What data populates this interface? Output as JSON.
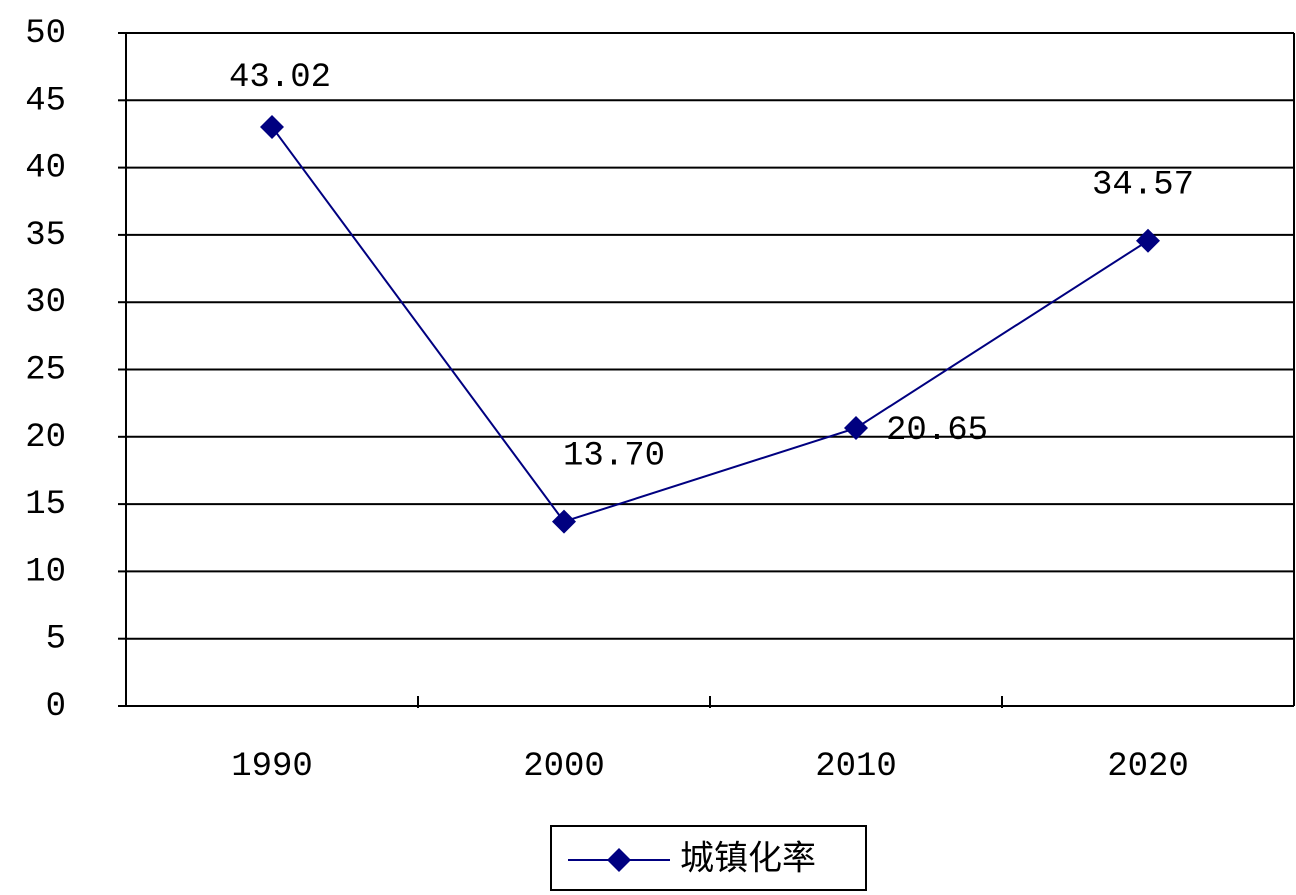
{
  "chart_data": {
    "type": "line",
    "categories": [
      "1990",
      "2000",
      "2010",
      "2020"
    ],
    "series": [
      {
        "name": "城镇化率",
        "color": "#000080",
        "values": [
          43.02,
          13.7,
          20.65,
          34.57
        ],
        "value_labels": [
          "43.02",
          "13.70",
          "20.65",
          "34.57"
        ]
      }
    ],
    "ylim": [
      0,
      50
    ],
    "yticks": [
      0,
      5,
      10,
      15,
      20,
      25,
      30,
      35,
      40,
      45,
      50
    ],
    "grid": true,
    "legend": "bottom"
  }
}
